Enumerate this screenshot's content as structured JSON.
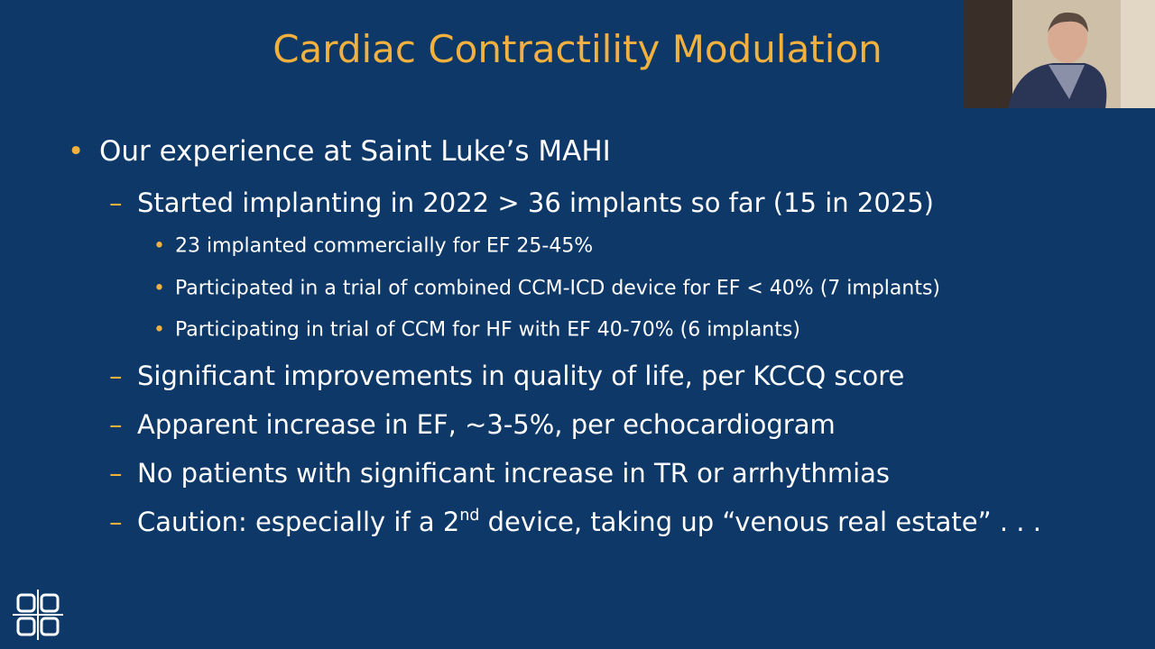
{
  "slide": {
    "title": "Cardiac Contractility Modulation",
    "bullets": [
      {
        "text": "Our experience at Saint Luke’s MAHI",
        "children": [
          {
            "text": "Started implanting in 2022 > 36 implants so far (15 in 2025)",
            "children": [
              {
                "text": "23 implanted commercially for EF 25-45%"
              },
              {
                "text": "Participated in a trial of combined CCM-ICD device for EF < 40% (7 implants)"
              },
              {
                "text": "Participating in trial of CCM for HF with EF 40-70% (6 implants)"
              }
            ]
          },
          {
            "text": "Significant improvements in quality of life, per KCCQ score"
          },
          {
            "text": "Apparent increase in EF, ~3-5%, per echocardiogram"
          },
          {
            "text": "No patients with significant increase in TR or arrhythmias"
          },
          {
            "parts": [
              "Caution: especially if a 2",
              "nd",
              " device, taking up “venous real estate” . . ."
            ]
          }
        ]
      }
    ]
  }
}
